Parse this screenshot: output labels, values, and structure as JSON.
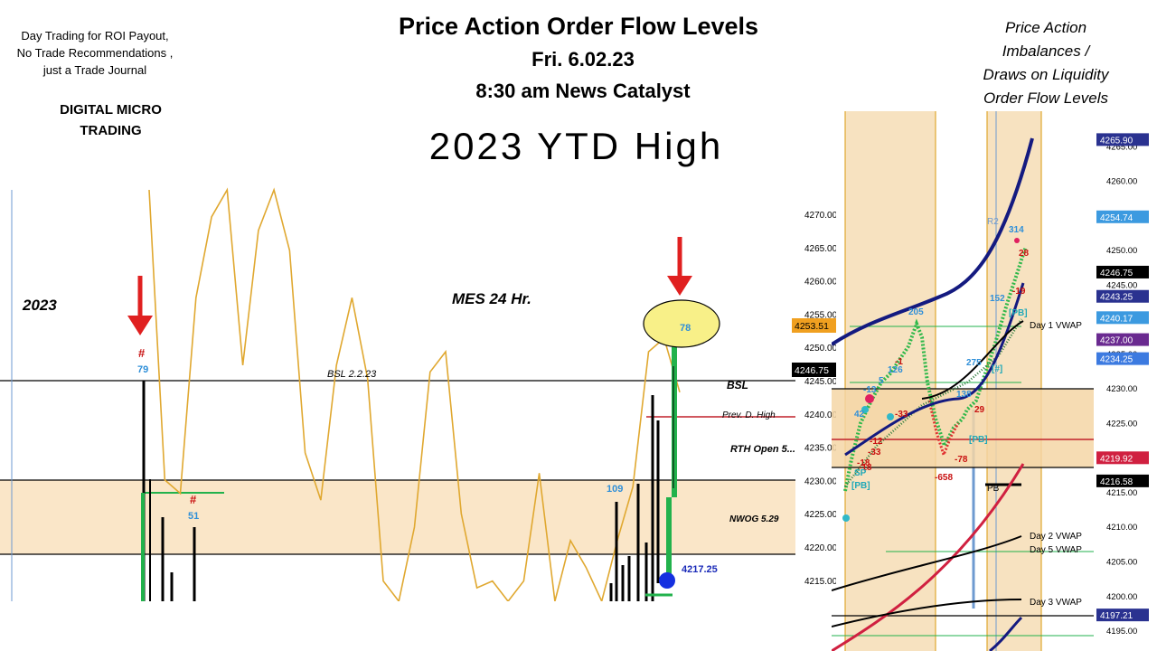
{
  "header": {
    "disclaimer": "Day Trading for ROI Payout,\nNo Trade Recommendations ,\njust a Trade Journal",
    "brand": "DIGITAL MICRO\nTRADING",
    "title": "Price Action Order Flow Levels",
    "date": "Fri. 6.02.23",
    "catalyst": "8:30 am News Catalyst",
    "ytd": "2023 YTD High",
    "right_notes": "Price Action\nImbalances /\nDraws on Liquidity\nOrder Flow Levels"
  },
  "colors": {
    "zone_fill": "#fae6c8",
    "gold_line": "#e0a830",
    "arrow_red": "#e02020",
    "prev_high_red": "#c0202a",
    "green": "#22b24c",
    "navy": "#141a80"
  },
  "chart_data": [
    {
      "type": "bar",
      "title": "MES  24 Hr.",
      "year_label": "2023",
      "y_ticks": [
        "4270.00",
        "4265.00",
        "4260.00",
        "4255.00",
        "4250.00",
        "4245.00",
        "4240.00",
        "4235.00",
        "4230.00",
        "4225.00",
        "4220.00",
        "4215.00"
      ],
      "ylim": [
        4213,
        4274
      ],
      "current_price": "4246.75",
      "highlight_price": "4253.51",
      "levels": [
        {
          "label": "BSL 2.2.23",
          "value": 4245.3
        },
        {
          "label": "BSL",
          "value": 4245.3
        },
        {
          "label": "Prev. D. High",
          "value": 4239.2
        },
        {
          "label": "RTH Open 5...",
          "value": 4234.8
        },
        {
          "label": "NWOG 5.29",
          "value": 4225.0
        }
      ],
      "zone": [
        4219.2,
        4230.1
      ],
      "bar_annotations": [
        "79",
        "51",
        "109",
        "78",
        "4217.25"
      ],
      "markers": [
        "#",
        "#"
      ],
      "oscillator": [
        4274,
        4231,
        4229,
        4258,
        4270,
        4274,
        4248,
        4268,
        4274,
        4265,
        4235,
        4228,
        4248,
        4258,
        4246,
        4216,
        4213,
        4224,
        4247,
        4250,
        4226,
        4215,
        4216,
        4213,
        4216,
        4232,
        4213,
        4222,
        4218,
        4213,
        4222,
        4230,
        4250,
        4252,
        4244
      ]
    },
    {
      "type": "line",
      "y_ticks": [
        "4265.00",
        "4260.00",
        "4255.00",
        "4250.00",
        "4245.00",
        "4240.00",
        "4235.00",
        "4230.00",
        "4225.00",
        "4220.00",
        "4215.00",
        "4210.00",
        "4205.00",
        "4200.00",
        "4195.00"
      ],
      "ylim": [
        4192,
        4270
      ],
      "price_tags": [
        "4265.90",
        "4254.74",
        "4246.75",
        "4243.25",
        "4240.17",
        "4237.00",
        "4234.25",
        "4219.92",
        "4216.58",
        "4197.21"
      ],
      "vwap_labels": [
        "Day 1 VWAP",
        "Day 2 VWAP",
        "Day 5 VWAP",
        "Day 3 VWAP"
      ],
      "annotations": [
        "314",
        "28",
        "-19",
        "152",
        "[PB]",
        "205",
        "-1",
        "126",
        "5",
        "-13",
        "42",
        "-33",
        "-12",
        "-33",
        "-18",
        "-18",
        "SP",
        "[PB]",
        "138",
        "29",
        "275",
        "[#]",
        "-78",
        "-658",
        "[PB]",
        "R2",
        "PB"
      ]
    }
  ]
}
